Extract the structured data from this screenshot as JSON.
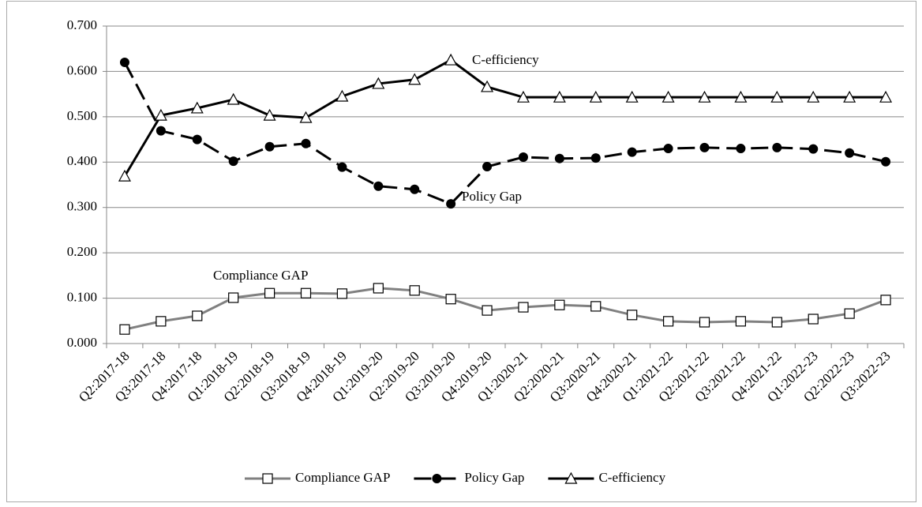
{
  "chart_data": {
    "type": "line",
    "categories": [
      "Q2:2017-18",
      "Q3:2017-18",
      "Q4:2017-18",
      "Q1:2018-19",
      "Q2:2018-19",
      "Q3:2018-19",
      "Q4:2018-19",
      "Q1:2019-20",
      "Q2:2019-20",
      "Q3:2019-20",
      "Q4:2019-20",
      "Q1:2020-21",
      "Q2:2020-21",
      "Q3:2020-21",
      "Q4:2020-21",
      "Q1:2021-22",
      "Q2:2021-22",
      "Q3:2021-22",
      "Q4:2021-22",
      "Q1:2022-23",
      "Q2:2022-23",
      "Q3:2022-23"
    ],
    "series": [
      {
        "name": "Compliance GAP",
        "color": "#808080",
        "marker": "square",
        "dashed": false,
        "values": [
          0.031,
          0.049,
          0.061,
          0.101,
          0.111,
          0.111,
          0.11,
          0.122,
          0.117,
          0.098,
          0.073,
          0.08,
          0.085,
          0.082,
          0.063,
          0.049,
          0.047,
          0.049,
          0.047,
          0.054,
          0.066,
          0.096
        ]
      },
      {
        "name": "Policy Gap",
        "color": "#000000",
        "marker": "circle",
        "dashed": true,
        "values": [
          0.62,
          0.469,
          0.45,
          0.402,
          0.434,
          0.441,
          0.389,
          0.347,
          0.34,
          0.308,
          0.39,
          0.411,
          0.408,
          0.409,
          0.422,
          0.43,
          0.432,
          0.43,
          0.432,
          0.429,
          0.42,
          0.401
        ]
      },
      {
        "name": "C-efficiency",
        "color": "#000000",
        "marker": "triangle",
        "dashed": false,
        "values": [
          0.369,
          0.503,
          0.519,
          0.538,
          0.503,
          0.498,
          0.545,
          0.573,
          0.582,
          0.625,
          0.566,
          0.543,
          0.543,
          0.543,
          0.543,
          0.543,
          0.543,
          0.543,
          0.543,
          0.543,
          0.543,
          0.543
        ]
      }
    ],
    "annotations": [
      "C-efficiency",
      "Policy Gap",
      "Compliance GAP"
    ],
    "ylim": [
      0,
      0.7
    ],
    "yticks": [
      {
        "value": 0,
        "label": "0.000"
      },
      {
        "value": 0.1,
        "label": "0.100"
      },
      {
        "value": 0.2,
        "label": "0.200"
      },
      {
        "value": 0.3,
        "label": "0.300"
      },
      {
        "value": 0.4,
        "label": "0.400"
      },
      {
        "value": 0.5,
        "label": "0.500"
      },
      {
        "value": 0.6,
        "label": "0.600"
      },
      {
        "value": 0.7,
        "label": "0.700"
      }
    ],
    "grid": true,
    "legend": "bottom"
  }
}
